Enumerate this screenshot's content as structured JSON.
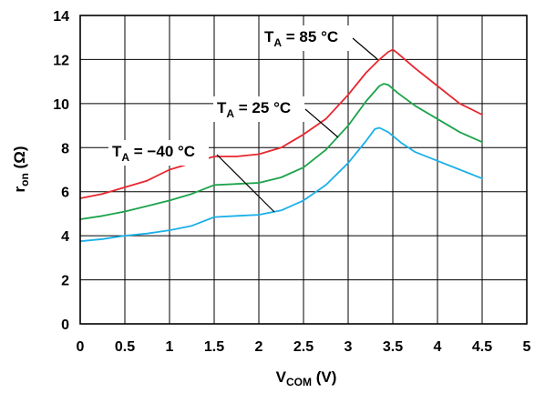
{
  "chart_data": {
    "type": "line",
    "xlabel": {
      "main": "V",
      "sub": "COM",
      "unit": " (V)"
    },
    "ylabel": {
      "main": "r",
      "sub": "on",
      "unit": " (Ω)"
    },
    "xlim": [
      0,
      5
    ],
    "ylim": [
      0,
      14
    ],
    "x_ticks": [
      "0",
      "0.5",
      "1",
      "1.5",
      "2",
      "2.5",
      "3",
      "3.5",
      "4",
      "4.5",
      "5"
    ],
    "y_ticks": [
      "0",
      "2",
      "4",
      "6",
      "8",
      "10",
      "12",
      "14"
    ],
    "grid": true,
    "series": [
      {
        "id": "t85",
        "label": {
          "main": "T",
          "sub": "A",
          "rest": " = 85 °C"
        },
        "color": "#e8262f",
        "x": [
          0,
          0.25,
          0.5,
          0.75,
          1,
          1.25,
          1.5,
          1.75,
          2,
          2.25,
          2.5,
          2.75,
          3,
          3.2,
          3.35,
          3.45,
          3.5,
          3.55,
          3.75,
          4,
          4.25,
          4.5
        ],
        "y": [
          5.7,
          5.9,
          6.2,
          6.5,
          7.0,
          7.3,
          7.6,
          7.6,
          7.7,
          8.0,
          8.6,
          9.3,
          10.4,
          11.4,
          12.0,
          12.35,
          12.45,
          12.3,
          11.6,
          10.8,
          10.0,
          9.5
        ]
      },
      {
        "id": "t25",
        "label": {
          "main": "T",
          "sub": "A",
          "rest": " = 25 °C"
        },
        "color": "#1aa34a",
        "x": [
          0,
          0.25,
          0.5,
          0.75,
          1,
          1.25,
          1.5,
          1.75,
          2,
          2.25,
          2.5,
          2.75,
          3,
          3.2,
          3.35,
          3.4,
          3.45,
          3.55,
          3.75,
          4,
          4.25,
          4.5
        ],
        "y": [
          4.75,
          4.9,
          5.1,
          5.35,
          5.6,
          5.9,
          6.3,
          6.35,
          6.4,
          6.65,
          7.1,
          7.9,
          9.0,
          10.1,
          10.8,
          10.9,
          10.85,
          10.5,
          9.9,
          9.3,
          8.7,
          8.25
        ]
      },
      {
        "id": "tm40",
        "label": {
          "main": "T",
          "sub": "A",
          "rest": " = −40 °C"
        },
        "color": "#1ab0e8",
        "x": [
          0,
          0.25,
          0.5,
          0.75,
          1,
          1.25,
          1.5,
          1.75,
          2,
          2.25,
          2.5,
          2.75,
          3,
          3.2,
          3.3,
          3.35,
          3.45,
          3.6,
          3.75,
          4,
          4.25,
          4.5
        ],
        "y": [
          3.75,
          3.85,
          4.0,
          4.1,
          4.25,
          4.45,
          4.85,
          4.9,
          4.95,
          5.15,
          5.6,
          6.3,
          7.3,
          8.3,
          8.85,
          8.9,
          8.7,
          8.2,
          7.8,
          7.4,
          7.0,
          6.6
        ]
      }
    ]
  }
}
